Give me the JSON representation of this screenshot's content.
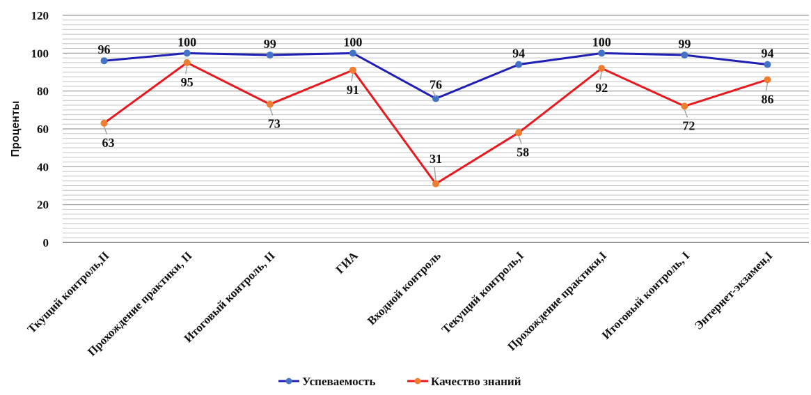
{
  "chart_data": {
    "type": "line",
    "title": "",
    "xlabel": "",
    "ylabel": "Проценты",
    "ylim": [
      0,
      120
    ],
    "yticks": [
      0,
      20,
      40,
      60,
      80,
      100,
      120
    ],
    "grid": true,
    "legend_position": "bottom",
    "categories": [
      "Ткущий контроль,II",
      "Прохождение практики, II",
      "Итоговый контроль, II",
      "ГИА",
      "Входной контроль",
      "Текущий контроль,I",
      "Прохождение практики,I",
      "Итоговый контроль, I",
      "Энтернет-экзамен,I"
    ],
    "series": [
      {
        "name": "Успеваемость",
        "color": "#1f1fb4",
        "marker_color": "#4472c4",
        "values": [
          96,
          100,
          99,
          100,
          76,
          94,
          100,
          99,
          94
        ]
      },
      {
        "name": "Качество знаний",
        "color": "#e8191e",
        "marker_color": "#ed7d31",
        "values": [
          63,
          95,
          73,
          91,
          31,
          58,
          92,
          72,
          86
        ]
      }
    ]
  }
}
